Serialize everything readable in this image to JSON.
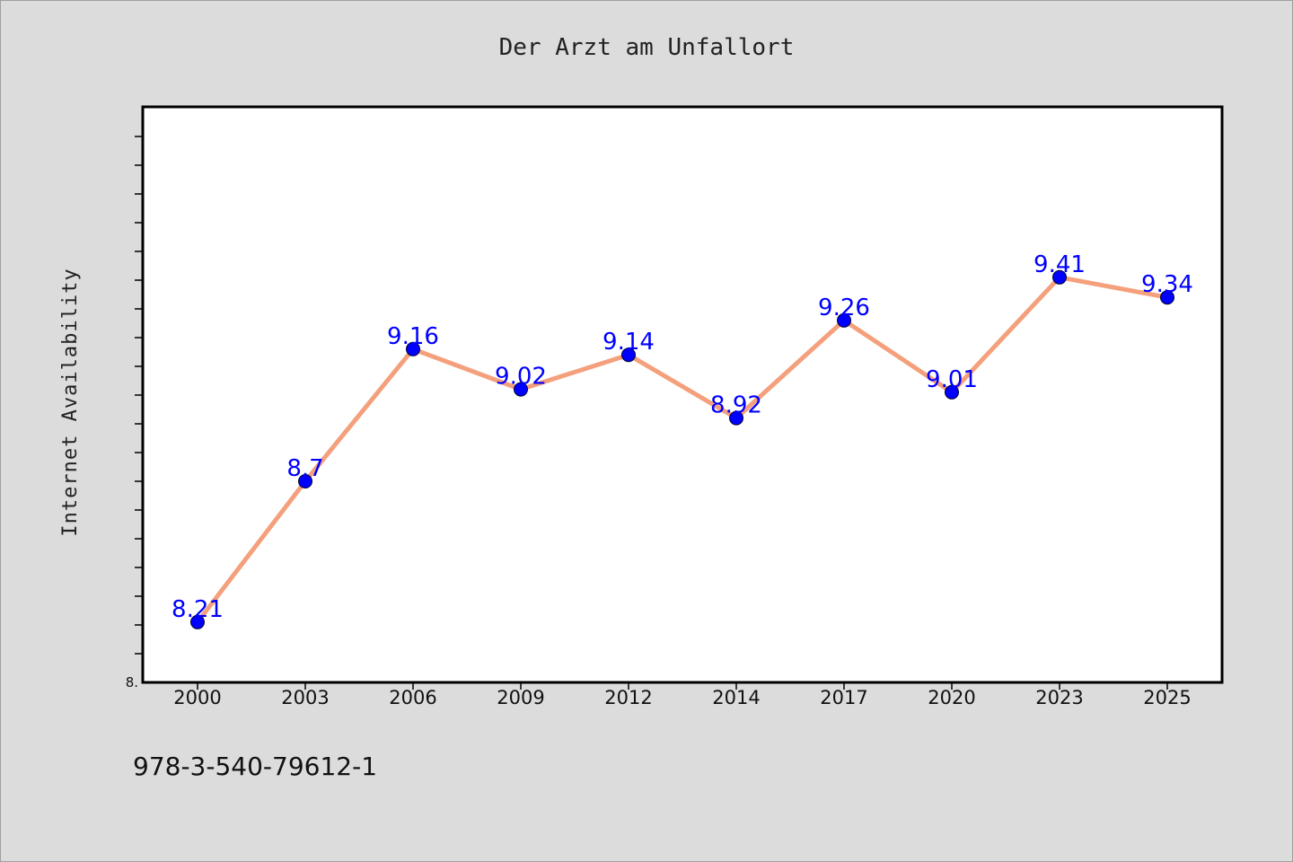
{
  "chart_data": {
    "type": "line",
    "title": "Der Arzt am Unfallort",
    "xlabel": "",
    "ylabel": "Internet Availability",
    "x": [
      "2000",
      "2003",
      "2006",
      "2009",
      "2012",
      "2014",
      "2017",
      "2020",
      "2023",
      "2025"
    ],
    "series": [
      {
        "values": [
          8.21,
          8.7,
          9.16,
          9.02,
          9.14,
          8.92,
          9.26,
          9.01,
          9.41,
          9.34
        ]
      }
    ],
    "data_labels": [
      "8.21",
      "8.7",
      "9.16",
      "9.02",
      "9.14",
      "8.92",
      "9.26",
      "9.01",
      "9.41",
      "9.34"
    ],
    "ylim": [
      8.0,
      10.0
    ],
    "y_tick_labels": [
      {
        "value": 8.0,
        "label": "8."
      }
    ],
    "y_minor_tick_step": 0.1,
    "grid": false,
    "line_color": "#f4a07c",
    "marker_color": "#0000ff",
    "label_color": "#0000ff",
    "footnote": "978-3-540-79612-1"
  }
}
